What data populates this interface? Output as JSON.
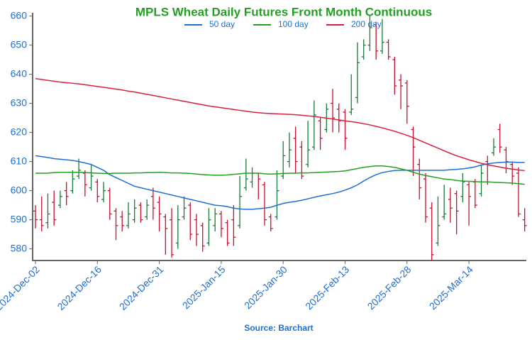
{
  "chart_data": {
    "type": "ohlc",
    "title": "MPLS Wheat Daily Futures Front Month Continuous",
    "source": "Source: Barchart",
    "categories": [
      "2024-Dec-02",
      null,
      null,
      null,
      null,
      null,
      null,
      null,
      null,
      null,
      "2024-Dec-16",
      null,
      null,
      null,
      null,
      null,
      null,
      null,
      null,
      null,
      "2024-Dec-31",
      null,
      null,
      null,
      null,
      null,
      null,
      null,
      null,
      null,
      "2025-Jan-15",
      null,
      null,
      null,
      null,
      null,
      null,
      null,
      null,
      null,
      "2025-Jan-30",
      null,
      null,
      null,
      null,
      null,
      null,
      null,
      null,
      null,
      "2025-Feb-13",
      null,
      null,
      null,
      null,
      null,
      null,
      null,
      null,
      null,
      "2025-Feb-28",
      null,
      null,
      null,
      null,
      null,
      null,
      null,
      null,
      null,
      "2025-Mar-14",
      null,
      null,
      null,
      null,
      null,
      null,
      null,
      null,
      null
    ],
    "open": [
      593,
      590,
      589,
      596,
      595,
      600,
      600,
      605,
      606,
      601,
      603,
      597,
      600,
      593,
      591,
      588,
      590,
      595,
      591,
      598,
      596,
      591,
      590,
      582,
      591,
      595,
      590,
      588,
      582,
      588,
      592,
      589,
      590,
      588,
      601,
      603,
      606,
      602,
      591,
      591,
      605,
      610,
      618,
      615,
      609,
      615,
      624,
      621,
      630,
      628,
      627,
      627,
      632,
      646,
      650,
      657,
      648,
      651,
      645,
      638,
      637,
      621,
      609,
      604,
      594,
      582,
      591,
      597,
      599,
      598,
      602,
      603,
      599,
      610,
      613,
      621,
      614,
      609,
      606,
      590
    ],
    "high": [
      595,
      598,
      599,
      600,
      600,
      603,
      607,
      611,
      607,
      609,
      604,
      603,
      601,
      594,
      593,
      596,
      597,
      596,
      597,
      601,
      598,
      592,
      594,
      595,
      598,
      596,
      592,
      589,
      594,
      594,
      593,
      590,
      595,
      605,
      611,
      608,
      606,
      603,
      592,
      607,
      617,
      620,
      622,
      617,
      624,
      631,
      625,
      630,
      635,
      630,
      628,
      640,
      651,
      652,
      660,
      658,
      659,
      652,
      646,
      640,
      638,
      622,
      611,
      606,
      596,
      598,
      602,
      601,
      600,
      606,
      603,
      604,
      609,
      612,
      618,
      623,
      615,
      610,
      608,
      594
    ],
    "low": [
      587,
      586,
      587,
      588,
      594,
      595,
      599,
      604,
      598,
      600,
      596,
      596,
      590,
      583,
      586,
      587,
      589,
      589,
      590,
      590,
      586,
      578,
      577,
      580,
      590,
      583,
      581,
      579,
      581,
      586,
      584,
      581,
      581,
      587,
      600,
      601,
      597,
      588,
      586,
      590,
      604,
      608,
      606,
      604,
      608,
      614,
      614,
      620,
      620,
      620,
      614,
      626,
      630,
      645,
      648,
      645,
      647,
      645,
      633,
      628,
      623,
      605,
      597,
      589,
      576,
      581,
      590,
      589,
      585,
      596,
      588,
      594,
      598,
      602,
      612,
      613,
      606,
      602,
      591,
      586
    ],
    "close": [
      590,
      588,
      592,
      590,
      598,
      598,
      604,
      607,
      602,
      605,
      598,
      600,
      592,
      588,
      588,
      592,
      594,
      590,
      595,
      594,
      592,
      587,
      578,
      590,
      594,
      585,
      585,
      581,
      590,
      592,
      587,
      582,
      584,
      598,
      604,
      606,
      604,
      590,
      587,
      600,
      612,
      614,
      610,
      605,
      614,
      626,
      618,
      628,
      625,
      624,
      618,
      628,
      644,
      650,
      656,
      648,
      651,
      646,
      636,
      636,
      629,
      615,
      601,
      591,
      578,
      588,
      592,
      594,
      593,
      603,
      598,
      595,
      606,
      603,
      615,
      615,
      610,
      605,
      592,
      588
    ],
    "up_color": "#1a7a3a",
    "down_color": "#c8102e",
    "series": [
      {
        "name": "50 day",
        "color": "#1f6fd1",
        "values": [
          612,
          611.7,
          611.4,
          611,
          610.8,
          610.6,
          610.4,
          610,
          609.5,
          609,
          608,
          607,
          605.5,
          604.5,
          603.5,
          602.5,
          601.5,
          601,
          600.5,
          600,
          599.5,
          599,
          598.5,
          598,
          597.5,
          597,
          596.5,
          596,
          595.5,
          595,
          594.8,
          594.5,
          594,
          593.7,
          593.6,
          593.6,
          593.8,
          594,
          594.3,
          595,
          595.6,
          596,
          596.3,
          596.7,
          597.2,
          597.7,
          598.2,
          598.6,
          599,
          599.5,
          600.2,
          601,
          602,
          603.3,
          604.5,
          605.5,
          606.2,
          606.6,
          606.9,
          607,
          607,
          607,
          607,
          607,
          607,
          607,
          607,
          607.2,
          607.3,
          607.5,
          607.8,
          608.2,
          608.8,
          609.2,
          609.5,
          609.7,
          609.8,
          609.8,
          609.7,
          609.7
        ]
      },
      {
        "name": "100 day",
        "color": "#22a022",
        "values": [
          606,
          606,
          606,
          606.2,
          606.3,
          606.3,
          606.3,
          606.3,
          606.2,
          606.1,
          606,
          605.9,
          605.9,
          606,
          606,
          606,
          606.1,
          606.1,
          606.2,
          606.2,
          606.3,
          606.2,
          606.1,
          606.1,
          606,
          605.9,
          605.7,
          605.5,
          605.4,
          605.3,
          605.3,
          605.4,
          605.6,
          605.8,
          606,
          606,
          606,
          605.8,
          605.7,
          605.8,
          605.9,
          606,
          606,
          606.1,
          606.1,
          606.2,
          606.3,
          606.4,
          606.5,
          606.6,
          606.8,
          607.2,
          607.6,
          608,
          608.3,
          608.5,
          608.5,
          608.3,
          608,
          607.5,
          607,
          606.3,
          605.7,
          605.2,
          604.8,
          604.4,
          604,
          603.8,
          603.5,
          603.3,
          603.2,
          603.1,
          603,
          603,
          602.9,
          602.8,
          602.7,
          602.6,
          602.4,
          602.2
        ]
      },
      {
        "name": "200 day",
        "color": "#d8203c",
        "values": [
          638.5,
          638.2,
          637.9,
          637.6,
          637.3,
          637.1,
          636.9,
          636.7,
          636.4,
          636.1,
          635.8,
          635.5,
          635.2,
          634.9,
          634.6,
          634.2,
          633.9,
          633.5,
          633.1,
          632.7,
          632.3,
          631.9,
          631.5,
          631.1,
          630.7,
          630.3,
          629.9,
          629.5,
          629.1,
          628.8,
          628.5,
          628.2,
          627.9,
          627.6,
          627.3,
          627,
          626.8,
          626.6,
          626.5,
          626.4,
          626.3,
          626.2,
          626.1,
          625.9,
          625.7,
          625.5,
          625.2,
          624.9,
          624.6,
          624.3,
          624,
          623.7,
          623.4,
          623,
          622.6,
          622.1,
          621.6,
          621,
          620.4,
          619.7,
          619,
          618.2,
          617.3,
          616.4,
          615.5,
          614.6,
          613.7,
          612.8,
          612,
          611.3,
          610.6,
          610,
          609.4,
          608.9,
          608.5,
          608.1,
          607.7,
          607.4,
          607.1,
          606.9
        ]
      }
    ],
    "ylim": [
      576,
      661
    ],
    "yticks": [
      580,
      590,
      600,
      610,
      620,
      630,
      640,
      650,
      660
    ]
  }
}
